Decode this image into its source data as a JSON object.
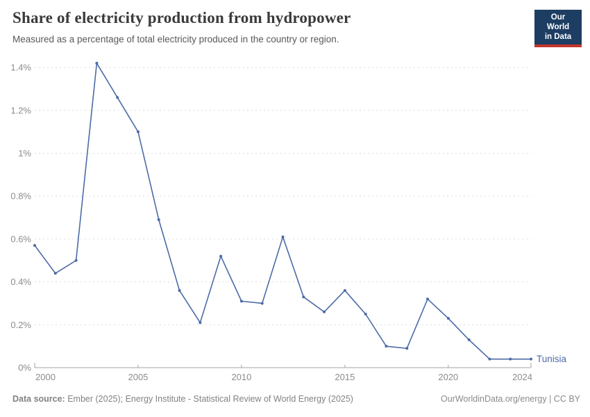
{
  "header": {
    "title": "Share of electricity production from hydropower",
    "subtitle": "Measured as a percentage of total electricity produced in the country or region."
  },
  "logo": {
    "line1": "Our World",
    "line2": "in Data",
    "bg_color": "#1d3d63",
    "accent_color": "#c4352c"
  },
  "footer": {
    "source_label": "Data source:",
    "source_text": "Ember (2025); Energy Institute - Statistical Review of World Energy (2025)",
    "credit": "OurWorldinData.org/energy | CC BY"
  },
  "chart_data": {
    "type": "line",
    "title": "Share of electricity production from hydropower",
    "xlabel": "",
    "ylabel": "",
    "x": [
      2000,
      2001,
      2002,
      2003,
      2004,
      2005,
      2006,
      2007,
      2008,
      2009,
      2010,
      2011,
      2012,
      2013,
      2014,
      2015,
      2016,
      2017,
      2018,
      2019,
      2020,
      2021,
      2022,
      2023,
      2024
    ],
    "series": [
      {
        "name": "Tunisia",
        "color": "#4c6ba6",
        "values": [
          0.57,
          0.44,
          0.5,
          1.42,
          1.26,
          1.1,
          0.69,
          0.36,
          0.21,
          0.52,
          0.31,
          0.3,
          0.61,
          0.33,
          0.26,
          0.36,
          0.25,
          0.1,
          0.09,
          0.32,
          0.23,
          0.13,
          0.04,
          0.04,
          0.04
        ]
      }
    ],
    "ylim": [
      0,
      1.4
    ],
    "yticks": [
      0,
      0.2,
      0.4,
      0.6,
      0.8,
      1.0,
      1.2,
      1.4
    ],
    "ytick_labels": [
      "0%",
      "0.2%",
      "0.4%",
      "0.6%",
      "0.8%",
      "1%",
      "1.2%",
      "1.4%"
    ],
    "xticks": [
      2000,
      2005,
      2010,
      2015,
      2020,
      2024
    ],
    "grid": "horizontal-dashed",
    "legend_position": "end-of-line",
    "marker": "dot"
  }
}
